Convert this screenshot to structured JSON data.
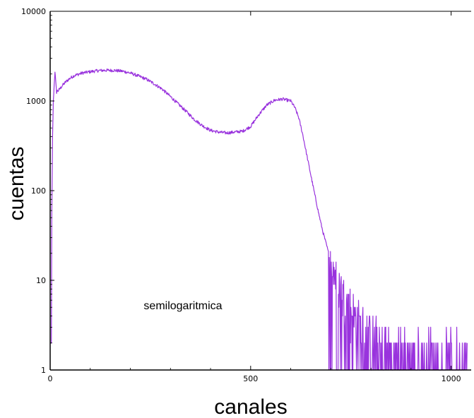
{
  "chart_data": {
    "type": "line",
    "title": "",
    "xlabel": "canales",
    "ylabel": "cuentas",
    "annotation": "semilogaritmica",
    "x_scale": "linear",
    "y_scale": "log",
    "xlim": [
      0,
      1050
    ],
    "ylim": [
      1,
      10000
    ],
    "x_ticks": [
      0,
      500,
      1000
    ],
    "x_tick_labels": [
      "0",
      "500",
      "1000"
    ],
    "y_ticks": [
      1,
      10,
      100,
      1000,
      10000
    ],
    "y_tick_labels": [
      "1",
      "10",
      "100",
      "1000",
      "10000"
    ],
    "grid": false,
    "legend": "none",
    "series": [
      {
        "color": "#9933dd",
        "x": [
          0,
          2,
          4,
          6,
          8,
          10,
          12,
          14,
          16,
          18,
          20,
          25,
          30,
          40,
          50,
          60,
          80,
          100,
          120,
          140,
          160,
          180,
          200,
          220,
          240,
          260,
          280,
          300,
          320,
          340,
          360,
          380,
          400,
          420,
          440,
          460,
          480,
          500,
          520,
          540,
          560,
          580,
          600,
          610,
          620,
          630,
          640,
          650,
          660,
          670,
          680,
          690,
          700,
          710,
          720,
          730,
          740,
          750,
          760,
          770,
          780,
          790,
          800,
          820,
          840,
          860,
          880,
          900,
          920,
          940,
          960,
          980,
          1000,
          1020,
          1040
        ],
        "y": [
          2,
          2,
          50,
          400,
          1000,
          1500,
          2150,
          1600,
          1250,
          1300,
          1300,
          1380,
          1480,
          1650,
          1800,
          1920,
          2050,
          2120,
          2180,
          2200,
          2190,
          2150,
          2050,
          1900,
          1750,
          1550,
          1350,
          1120,
          920,
          760,
          620,
          530,
          470,
          450,
          440,
          450,
          460,
          520,
          700,
          900,
          1020,
          1050,
          1000,
          850,
          650,
          420,
          250,
          150,
          90,
          55,
          35,
          24,
          16,
          12,
          9,
          7,
          5.5,
          4.5,
          3.6,
          3,
          2.5,
          2.1,
          1.8,
          1.5,
          1.3,
          1.2,
          1.1,
          1.05,
          1.02,
          1.01,
          1.0,
          1.0,
          1.0,
          1.0,
          1.0
        ]
      }
    ]
  },
  "colors": {
    "series": "#9933dd",
    "axis": "#000000",
    "background": "#ffffff"
  }
}
